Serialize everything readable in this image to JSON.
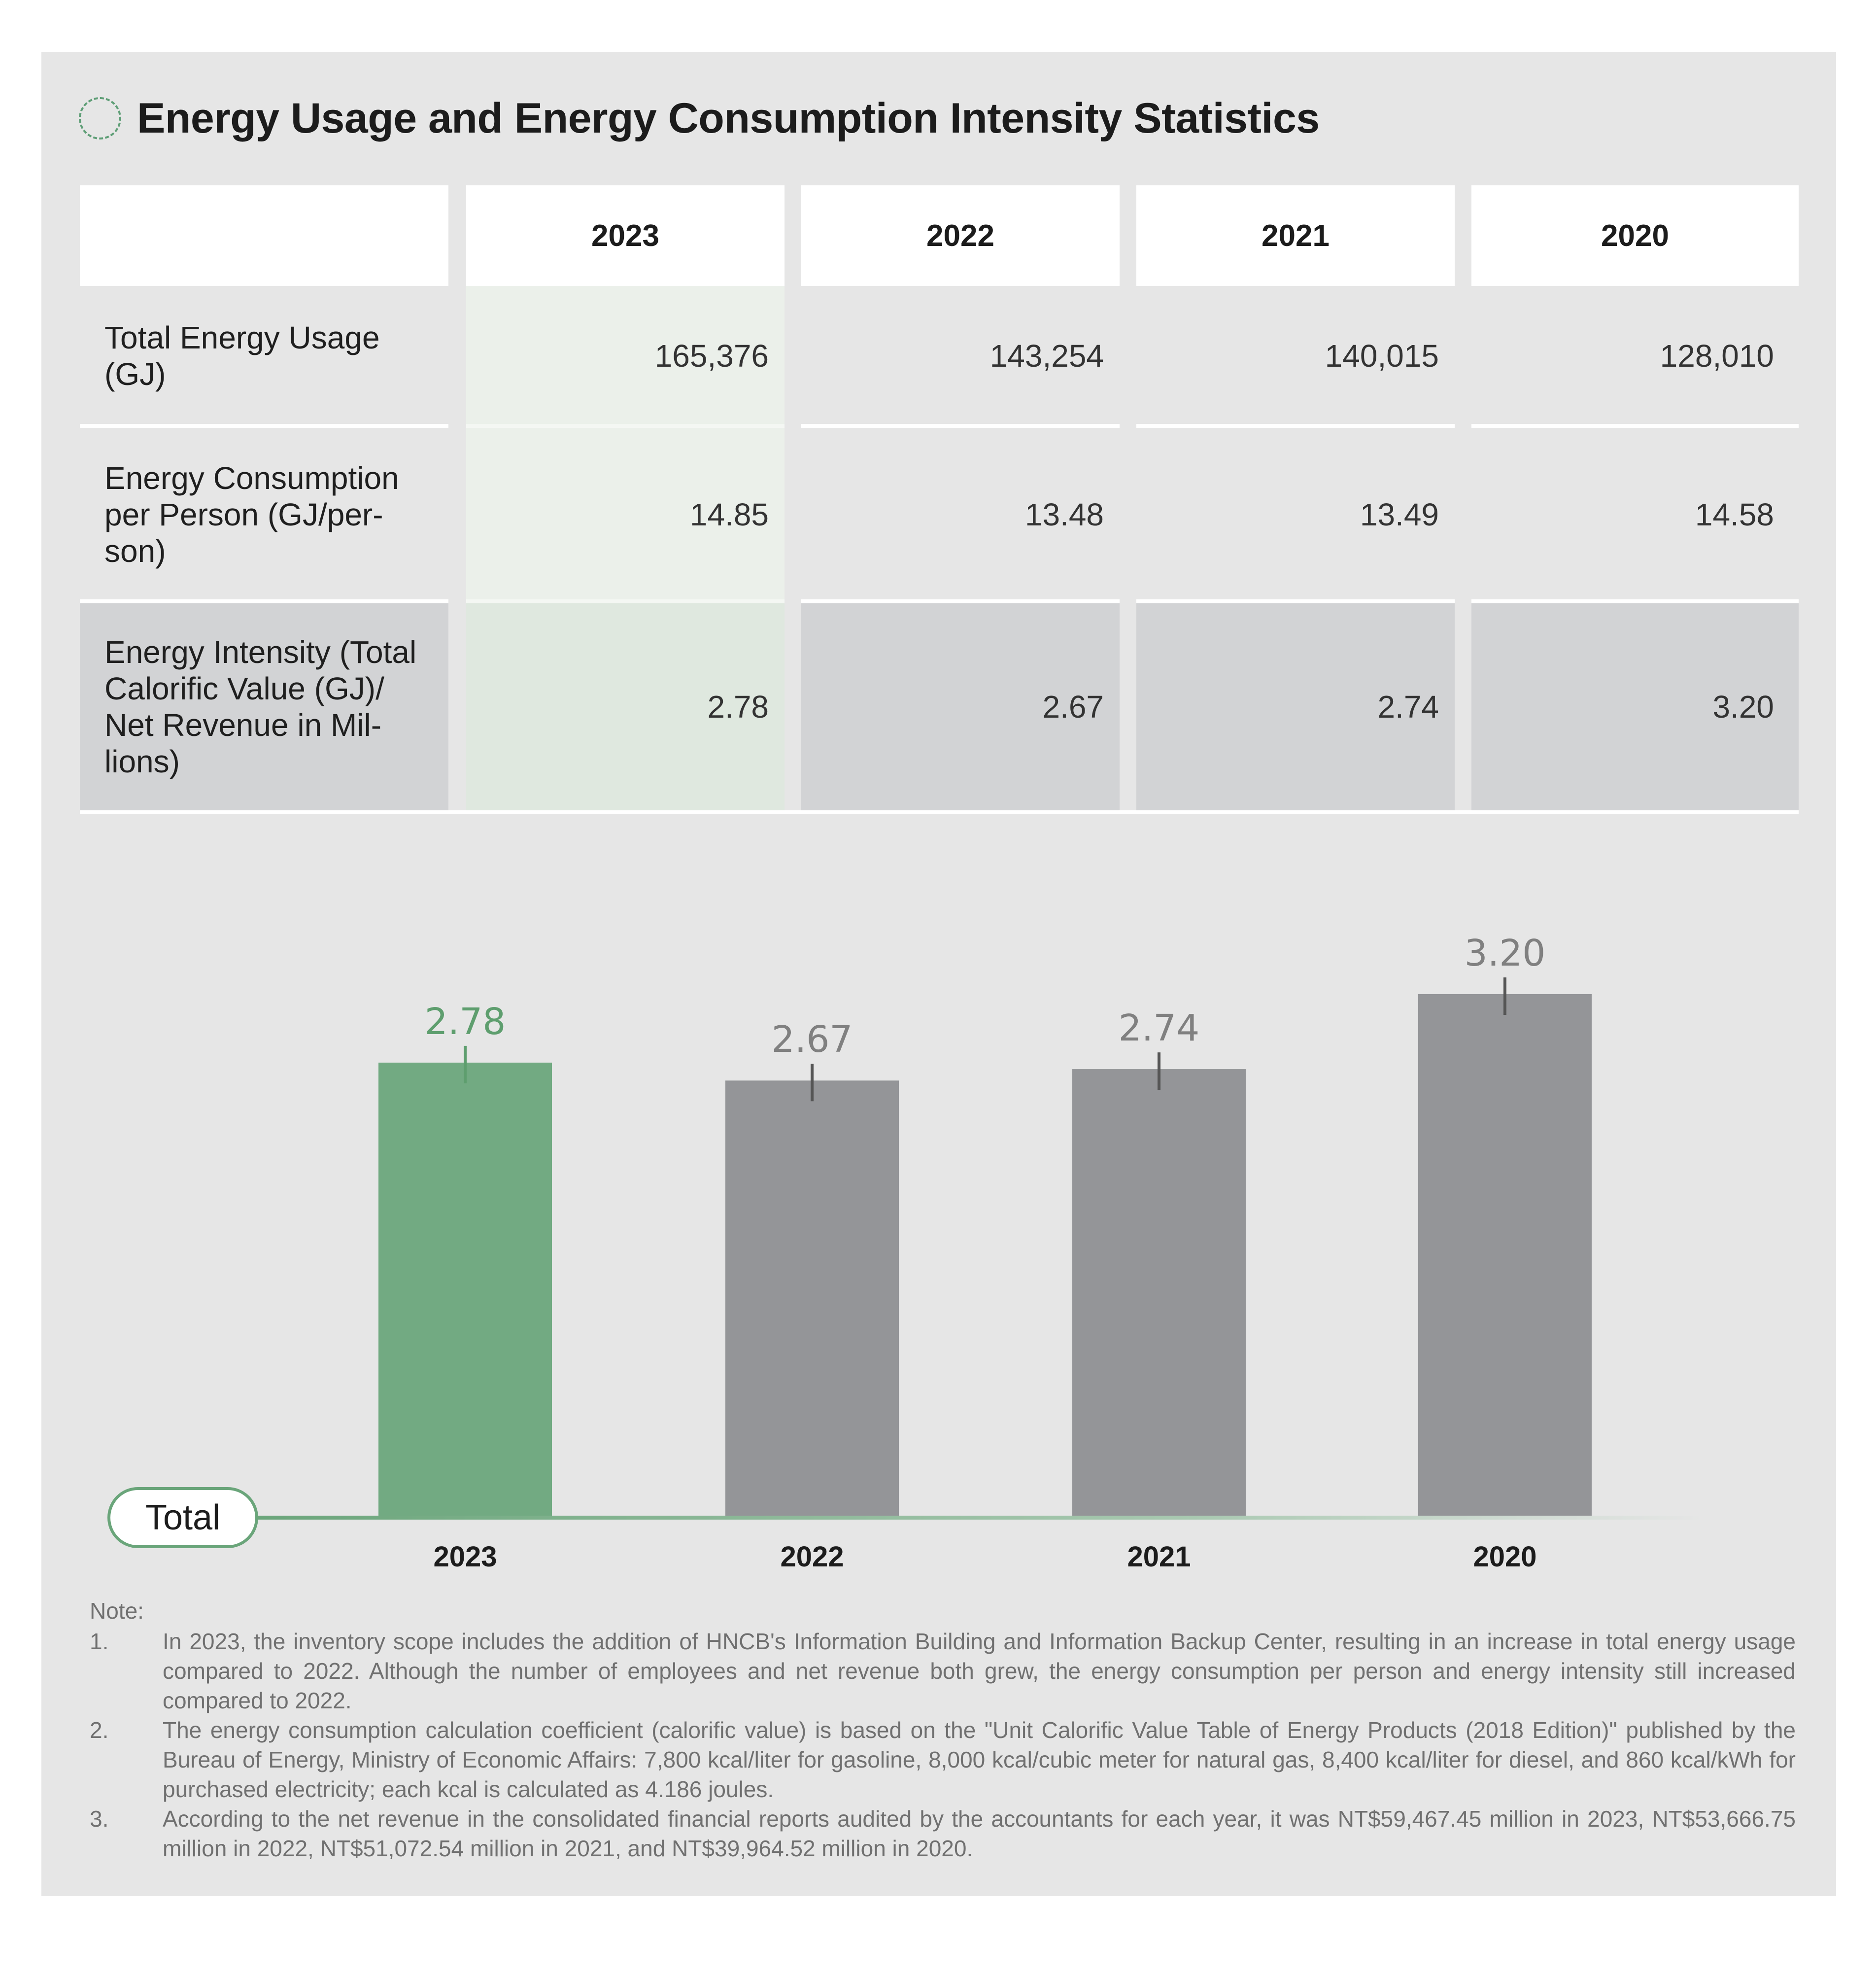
{
  "title": "Energy Usage and Energy Consumption Intensity Statistics",
  "table": {
    "years": [
      "2023",
      "2022",
      "2021",
      "2020"
    ],
    "rows": [
      {
        "label": "Total Energy Usage (GJ)",
        "values": [
          "165,376",
          "143,254",
          "140,015",
          "128,010"
        ]
      },
      {
        "label": "Energy Consumption per Person (GJ/per-son)",
        "values": [
          "14.85",
          "13.48",
          "13.49",
          "14.58"
        ]
      },
      {
        "label": "Energy Intensity (Total Calorific Value (GJ)/ Net Revenue in Mil-lions)",
        "values": [
          "2.78",
          "2.67",
          "2.74",
          "3.20"
        ]
      }
    ]
  },
  "chart_label": "Total",
  "chart_data": {
    "type": "bar",
    "categories": [
      "2023",
      "2022",
      "2021",
      "2020"
    ],
    "values": [
      2.78,
      2.67,
      2.74,
      3.2
    ],
    "value_labels": [
      "2.78",
      "2.67",
      "2.74",
      "3.20"
    ],
    "highlight_category": "2023",
    "colors": {
      "highlight": "#72aa82",
      "default": "#949598",
      "highlight_label": "#5e9e6e",
      "default_label": "#808080"
    },
    "title": "",
    "xlabel": "",
    "ylabel": "",
    "ylim": [
      0,
      3.2
    ]
  },
  "notes": {
    "title": "Note:",
    "items": [
      {
        "num": "1.",
        "text": "In 2023, the inventory scope includes the addition of HNCB's Information Building and Information Backup Center, resulting in an increase in total energy usage compared to 2022. Although the number of employees and net revenue both grew, the energy consumption per person and energy intensity still increased compared to 2022."
      },
      {
        "num": "2.",
        "text": "The energy consumption calculation coefficient (calorific value) is based on the \"Unit Calorific Value Table of Energy Products (2018 Edition)\" published by the Bureau of Energy, Ministry of Economic Affairs: 7,800 kcal/liter for gasoline, 8,000 kcal/cubic meter for natural gas, 8,400 kcal/liter for diesel, and 860 kcal/kWh for purchased electricity; each kcal is calculated as 4.186 joules."
      },
      {
        "num": "3.",
        "text": "According to the net revenue in the consolidated financial reports audited by the accountants for each year, it was NT$59,467.45 million in 2023, NT$53,666.75 million in 2022, NT$51,072.54 million in 2021, and NT$39,964.52 million in 2020."
      }
    ]
  }
}
